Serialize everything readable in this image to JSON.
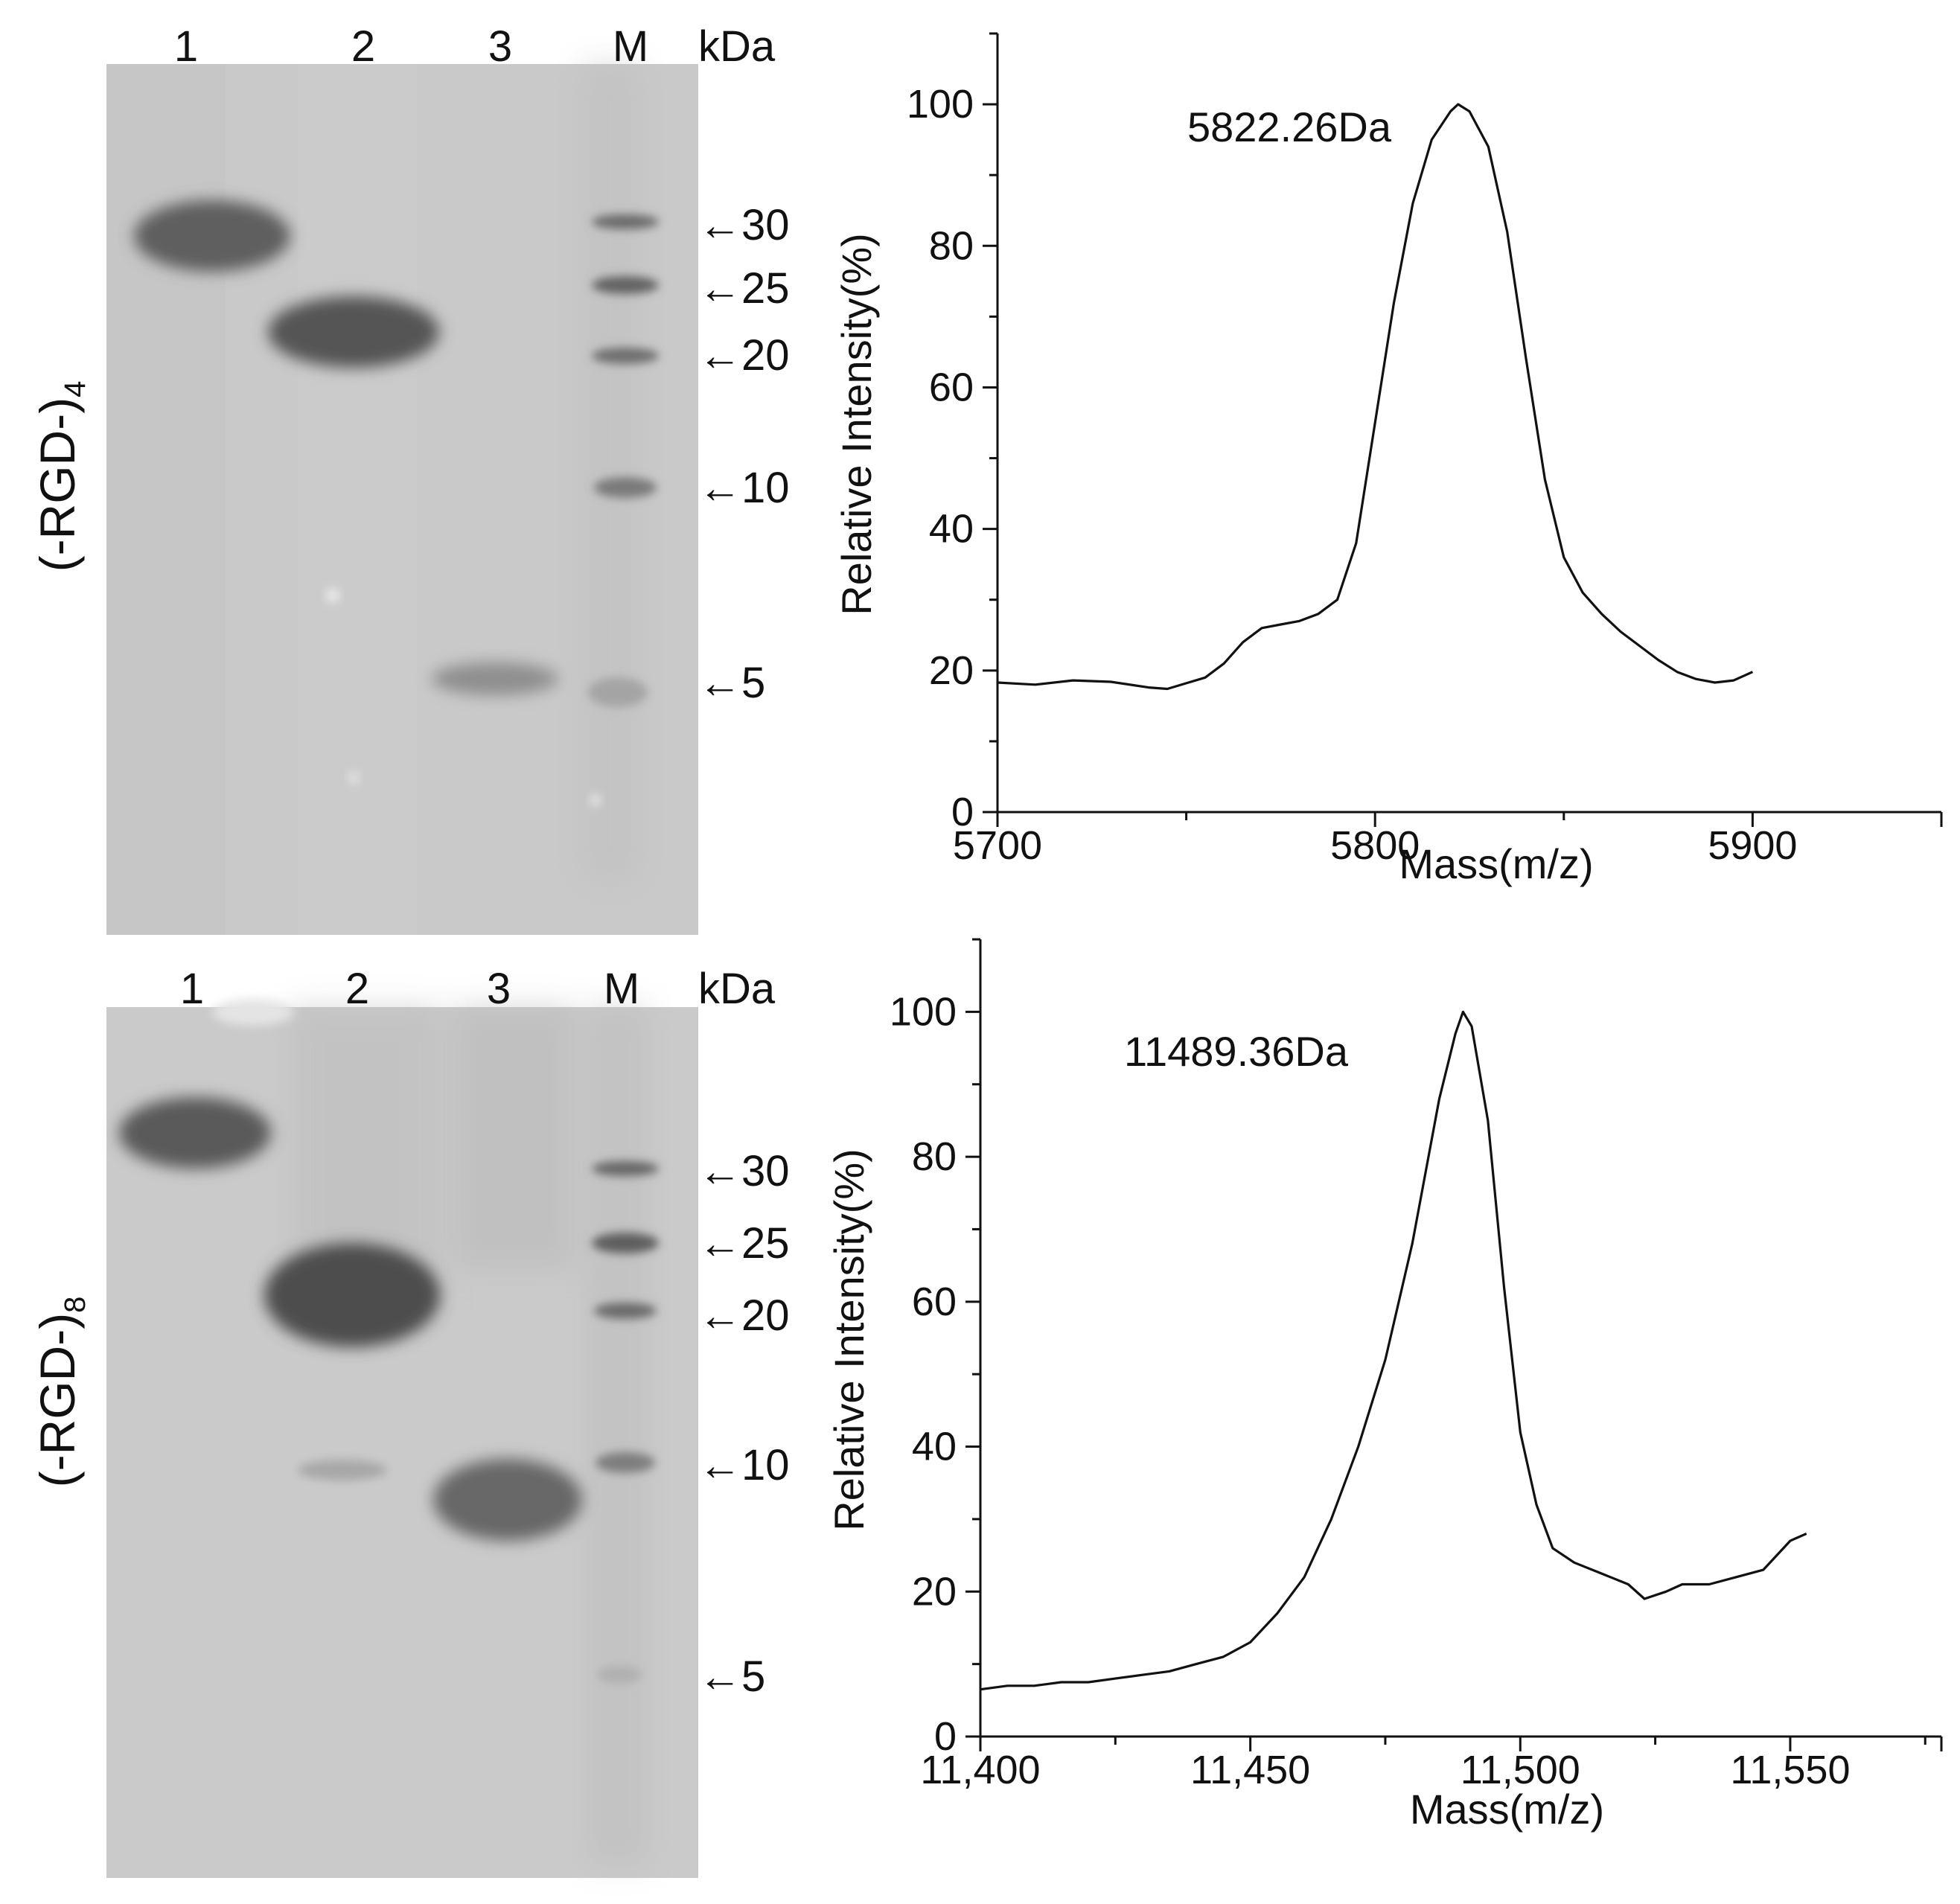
{
  "panels": [
    {
      "row_label": "(-RGD-)",
      "row_label_subscript": "4",
      "gel": {
        "lanes": [
          "1",
          "2",
          "3",
          "M"
        ],
        "unit": "kDa",
        "markers": [
          {
            "arrow": "←",
            "label": "30",
            "kda": 30
          },
          {
            "arrow": "←",
            "label": "25",
            "kda": 25
          },
          {
            "arrow": "←",
            "label": "20",
            "kda": 20
          },
          {
            "arrow": "←",
            "label": "10",
            "kda": 10
          },
          {
            "arrow": "←",
            "label": "5",
            "kda": 5
          }
        ]
      }
    },
    {
      "row_label": "(-RGD-)",
      "row_label_subscript": "8",
      "gel": {
        "lanes": [
          "1",
          "2",
          "3",
          "M"
        ],
        "unit": "kDa",
        "markers": [
          {
            "arrow": "←",
            "label": "30",
            "kda": 30
          },
          {
            "arrow": "←",
            "label": "25",
            "kda": 25
          },
          {
            "arrow": "←",
            "label": "20",
            "kda": 20
          },
          {
            "arrow": "←",
            "label": "10",
            "kda": 10
          },
          {
            "arrow": "←",
            "label": "5",
            "kda": 5
          }
        ]
      }
    }
  ],
  "chart_data": [
    {
      "type": "line",
      "title": "",
      "annotation": "5822.26Da",
      "peak_x": 5822.26,
      "xlabel": "Mass(m/z)",
      "ylabel": "Relative Intensity(%)",
      "xlim": [
        5700,
        5950
      ],
      "ylim": [
        0,
        110
      ],
      "xticks": [
        5700,
        5800,
        5900
      ],
      "xtick_labels": [
        "5700",
        "5800",
        "5900"
      ],
      "yticks": [
        0,
        20,
        40,
        60,
        80,
        100
      ],
      "ytick_labels": [
        "0",
        "20",
        "40",
        "60",
        "80",
        "100"
      ],
      "x": [
        5700,
        5710,
        5720,
        5730,
        5740,
        5745,
        5750,
        5755,
        5760,
        5765,
        5770,
        5775,
        5780,
        5785,
        5790,
        5795,
        5800,
        5805,
        5810,
        5815,
        5820,
        5822,
        5825,
        5830,
        5835,
        5840,
        5845,
        5850,
        5855,
        5860,
        5865,
        5870,
        5875,
        5880,
        5885,
        5890,
        5895,
        5900
      ],
      "y": [
        18.3,
        18.0,
        18.6,
        18.4,
        17.6,
        17.4,
        18.2,
        19.0,
        21.0,
        24.0,
        26.0,
        26.5,
        27.0,
        28.0,
        30.0,
        38.0,
        55.0,
        72.0,
        86.0,
        95.0,
        99.0,
        100.0,
        99.0,
        94.0,
        82.0,
        64.0,
        47.0,
        36.0,
        31.0,
        28.0,
        25.5,
        23.5,
        21.5,
        19.8,
        18.8,
        18.3,
        18.6,
        19.8
      ]
    },
    {
      "type": "line",
      "title": "",
      "annotation": "11489.36Da",
      "peak_x": 11489.36,
      "xlabel": "Mass(m/z)",
      "ylabel": "Relative Intensity(%)",
      "xlim": [
        11400,
        11578
      ],
      "ylim": [
        0,
        110
      ],
      "xticks": [
        11400,
        11450,
        11500,
        11550
      ],
      "xtick_labels": [
        "11,400",
        "11,450",
        "11,500",
        "11,550"
      ],
      "yticks": [
        0,
        20,
        40,
        60,
        80,
        100
      ],
      "ytick_labels": [
        "0",
        "20",
        "40",
        "60",
        "80",
        "100"
      ],
      "x": [
        11400,
        11405,
        11410,
        11415,
        11420,
        11425,
        11430,
        11435,
        11440,
        11445,
        11450,
        11455,
        11460,
        11465,
        11470,
        11475,
        11480,
        11485,
        11488,
        11489.4,
        11491,
        11494,
        11497,
        11500,
        11503,
        11506,
        11510,
        11515,
        11520,
        11523,
        11527,
        11530,
        11535,
        11540,
        11545,
        11550,
        11553
      ],
      "y": [
        6.5,
        7.0,
        7.0,
        7.5,
        7.5,
        8.0,
        8.5,
        9.0,
        10.0,
        11.0,
        13.0,
        17.0,
        22.0,
        30.0,
        40.0,
        52.0,
        68.0,
        88.0,
        97.0,
        100.0,
        98.0,
        85.0,
        62.0,
        42.0,
        32.0,
        26.0,
        24.0,
        22.5,
        21.0,
        19.0,
        20.0,
        21.0,
        21.0,
        22.0,
        23.0,
        27.0,
        28.0
      ]
    }
  ]
}
